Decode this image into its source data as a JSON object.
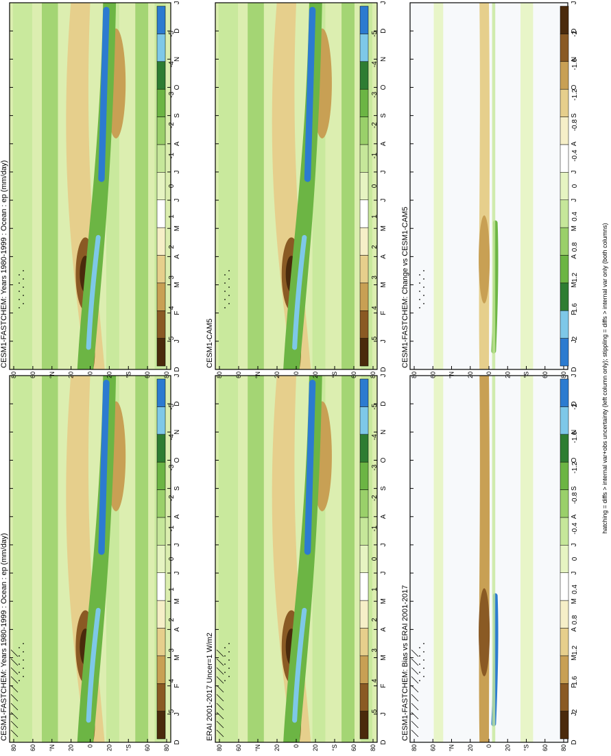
{
  "figure": {
    "footnote": "hatching = diffs > internal var+obs uncertainty (left column only); stippling = diffs > internal var only (both columns)"
  },
  "colors": {
    "brown_dark": "#4a2a0c",
    "brown": "#8a5a24",
    "tan": "#c8a054",
    "tan_light": "#e6cf8c",
    "cream": "#f6efc8",
    "white": "#ffffff",
    "green_pale": "#e6f4c2",
    "green_light": "#c6e79a",
    "green": "#9ad06a",
    "green_mid": "#6cb544",
    "green_dark": "#2e7d32",
    "cyan": "#7ec8e8",
    "blue": "#2c7bd0"
  },
  "chart_data": [
    {
      "id": "p1",
      "type": "heatmap",
      "title": "CESM1-FASTCHEM: Years 1980-1999 : Ocean : ep (mm/day)",
      "pattern": "mean",
      "hatching": true,
      "stipple": true,
      "x_ticks": [
        "D",
        "J",
        "F",
        "M",
        "A",
        "M",
        "J",
        "J",
        "A",
        "S",
        "O",
        "N",
        "D",
        "J"
      ],
      "y_ticks": [
        "80",
        "60",
        "°N",
        "20",
        "0",
        "20",
        "°S",
        "60",
        "80"
      ],
      "colorbar": {
        "levels": [
          5,
          4,
          3,
          2,
          1,
          0,
          -1,
          -2,
          -3,
          -4,
          -5
        ],
        "labels": [
          "5",
          "4",
          "3",
          "2",
          "1",
          "0",
          "-1",
          "-2",
          "-3",
          "-4",
          "-5"
        ]
      }
    },
    {
      "id": "p2",
      "type": "heatmap",
      "title": "CESM1-FASTCHEM: Years 1980-1999 : Ocean : ep (mm/day)",
      "pattern": "mean",
      "hatching": false,
      "stipple": true,
      "x_ticks": [
        "D",
        "J",
        "F",
        "M",
        "A",
        "M",
        "J",
        "J",
        "A",
        "S",
        "O",
        "N",
        "D",
        "J"
      ],
      "y_ticks": [
        "80",
        "60",
        "°N",
        "20",
        "0",
        "20",
        "°S",
        "60",
        "80"
      ],
      "colorbar": {
        "levels": [
          5,
          4,
          3,
          2,
          1,
          0,
          -1,
          -2,
          -3,
          -4,
          -5
        ],
        "labels": [
          "5",
          "4",
          "3",
          "2",
          "1",
          "0",
          "-1",
          "-2",
          "-3",
          "-4",
          "-5"
        ]
      }
    },
    {
      "id": "p3",
      "type": "heatmap",
      "title": "ERAI 2001-2017 Uncer=1 W/m2",
      "pattern": "mean",
      "hatching": true,
      "stipple": true,
      "x_ticks": [
        "D",
        "J",
        "F",
        "M",
        "A",
        "M",
        "J",
        "J",
        "A",
        "S",
        "O",
        "N",
        "D",
        "J"
      ],
      "y_ticks": [
        "80",
        "60",
        "°N",
        "20",
        "0",
        "20",
        "°S",
        "60",
        "80"
      ],
      "colorbar": {
        "levels": [
          5,
          4,
          3,
          2,
          1,
          0,
          -1,
          -2,
          -3,
          -4,
          -5
        ],
        "labels": [
          "5",
          "4",
          "3",
          "2",
          "1",
          "0",
          "-1",
          "-2",
          "-3",
          "-4",
          "-5"
        ]
      }
    },
    {
      "id": "p4",
      "type": "heatmap",
      "title": "CESM1-CAM5",
      "pattern": "mean",
      "hatching": false,
      "stipple": true,
      "x_ticks": [
        "D",
        "J",
        "F",
        "M",
        "A",
        "M",
        "J",
        "J",
        "A",
        "S",
        "O",
        "N",
        "D",
        "J"
      ],
      "y_ticks": [
        "80",
        "60",
        "°N",
        "20",
        "0",
        "20",
        "°S",
        "60",
        "80"
      ],
      "colorbar": {
        "levels": [
          5,
          4,
          3,
          2,
          1,
          0,
          -1,
          -2,
          -3,
          -4,
          -5
        ],
        "labels": [
          "5",
          "4",
          "3",
          "2",
          "1",
          "0",
          "-1",
          "-2",
          "-3",
          "-4",
          "-5"
        ]
      }
    },
    {
      "id": "p5",
      "type": "heatmap",
      "title": "CESM1-FASTCHEM: Bias vs ERAI 2001-2017",
      "pattern": "bias",
      "hatching": true,
      "stipple": true,
      "x_ticks": [
        "D",
        "J",
        "F",
        "M",
        "A",
        "M",
        "J",
        "J",
        "A",
        "S",
        "O",
        "N",
        "D",
        "J"
      ],
      "y_ticks": [
        "80",
        "60",
        "°N",
        "20",
        "0",
        "20",
        "°S",
        "60",
        "80"
      ],
      "colorbar": {
        "levels": [
          2,
          1.6,
          1.2,
          0.8,
          0.4,
          0,
          -0.4,
          -0.8,
          -1.2,
          -1.6,
          -2
        ],
        "labels": [
          "2",
          "1.6",
          "1.2",
          "0.8",
          "0.4",
          "0",
          "-0.4",
          "-0.8",
          "-1.2",
          "-1.6",
          "-2"
        ]
      }
    },
    {
      "id": "p6",
      "type": "heatmap",
      "title": "CESM1-FASTCHEM: Change vs CESM1-CAM5",
      "pattern": "change",
      "hatching": false,
      "stipple": true,
      "x_ticks": [
        "D",
        "J",
        "F",
        "M",
        "A",
        "M",
        "J",
        "J",
        "A",
        "S",
        "O",
        "N",
        "D",
        "J"
      ],
      "y_ticks": [
        "80",
        "60",
        "°N",
        "20",
        "0",
        "20",
        "°S",
        "60",
        "80"
      ],
      "colorbar": {
        "levels": [
          2,
          1.6,
          1.2,
          0.8,
          0.4,
          0,
          -0.4,
          -0.8,
          -1.2,
          -1.6,
          -2
        ],
        "labels": [
          "2",
          "1.6",
          "1.2",
          "0.8",
          "0.4",
          "0",
          "-0.4",
          "-0.8",
          "-1.2",
          "-1.6",
          "-2"
        ],
        "reversed": true
      }
    }
  ]
}
